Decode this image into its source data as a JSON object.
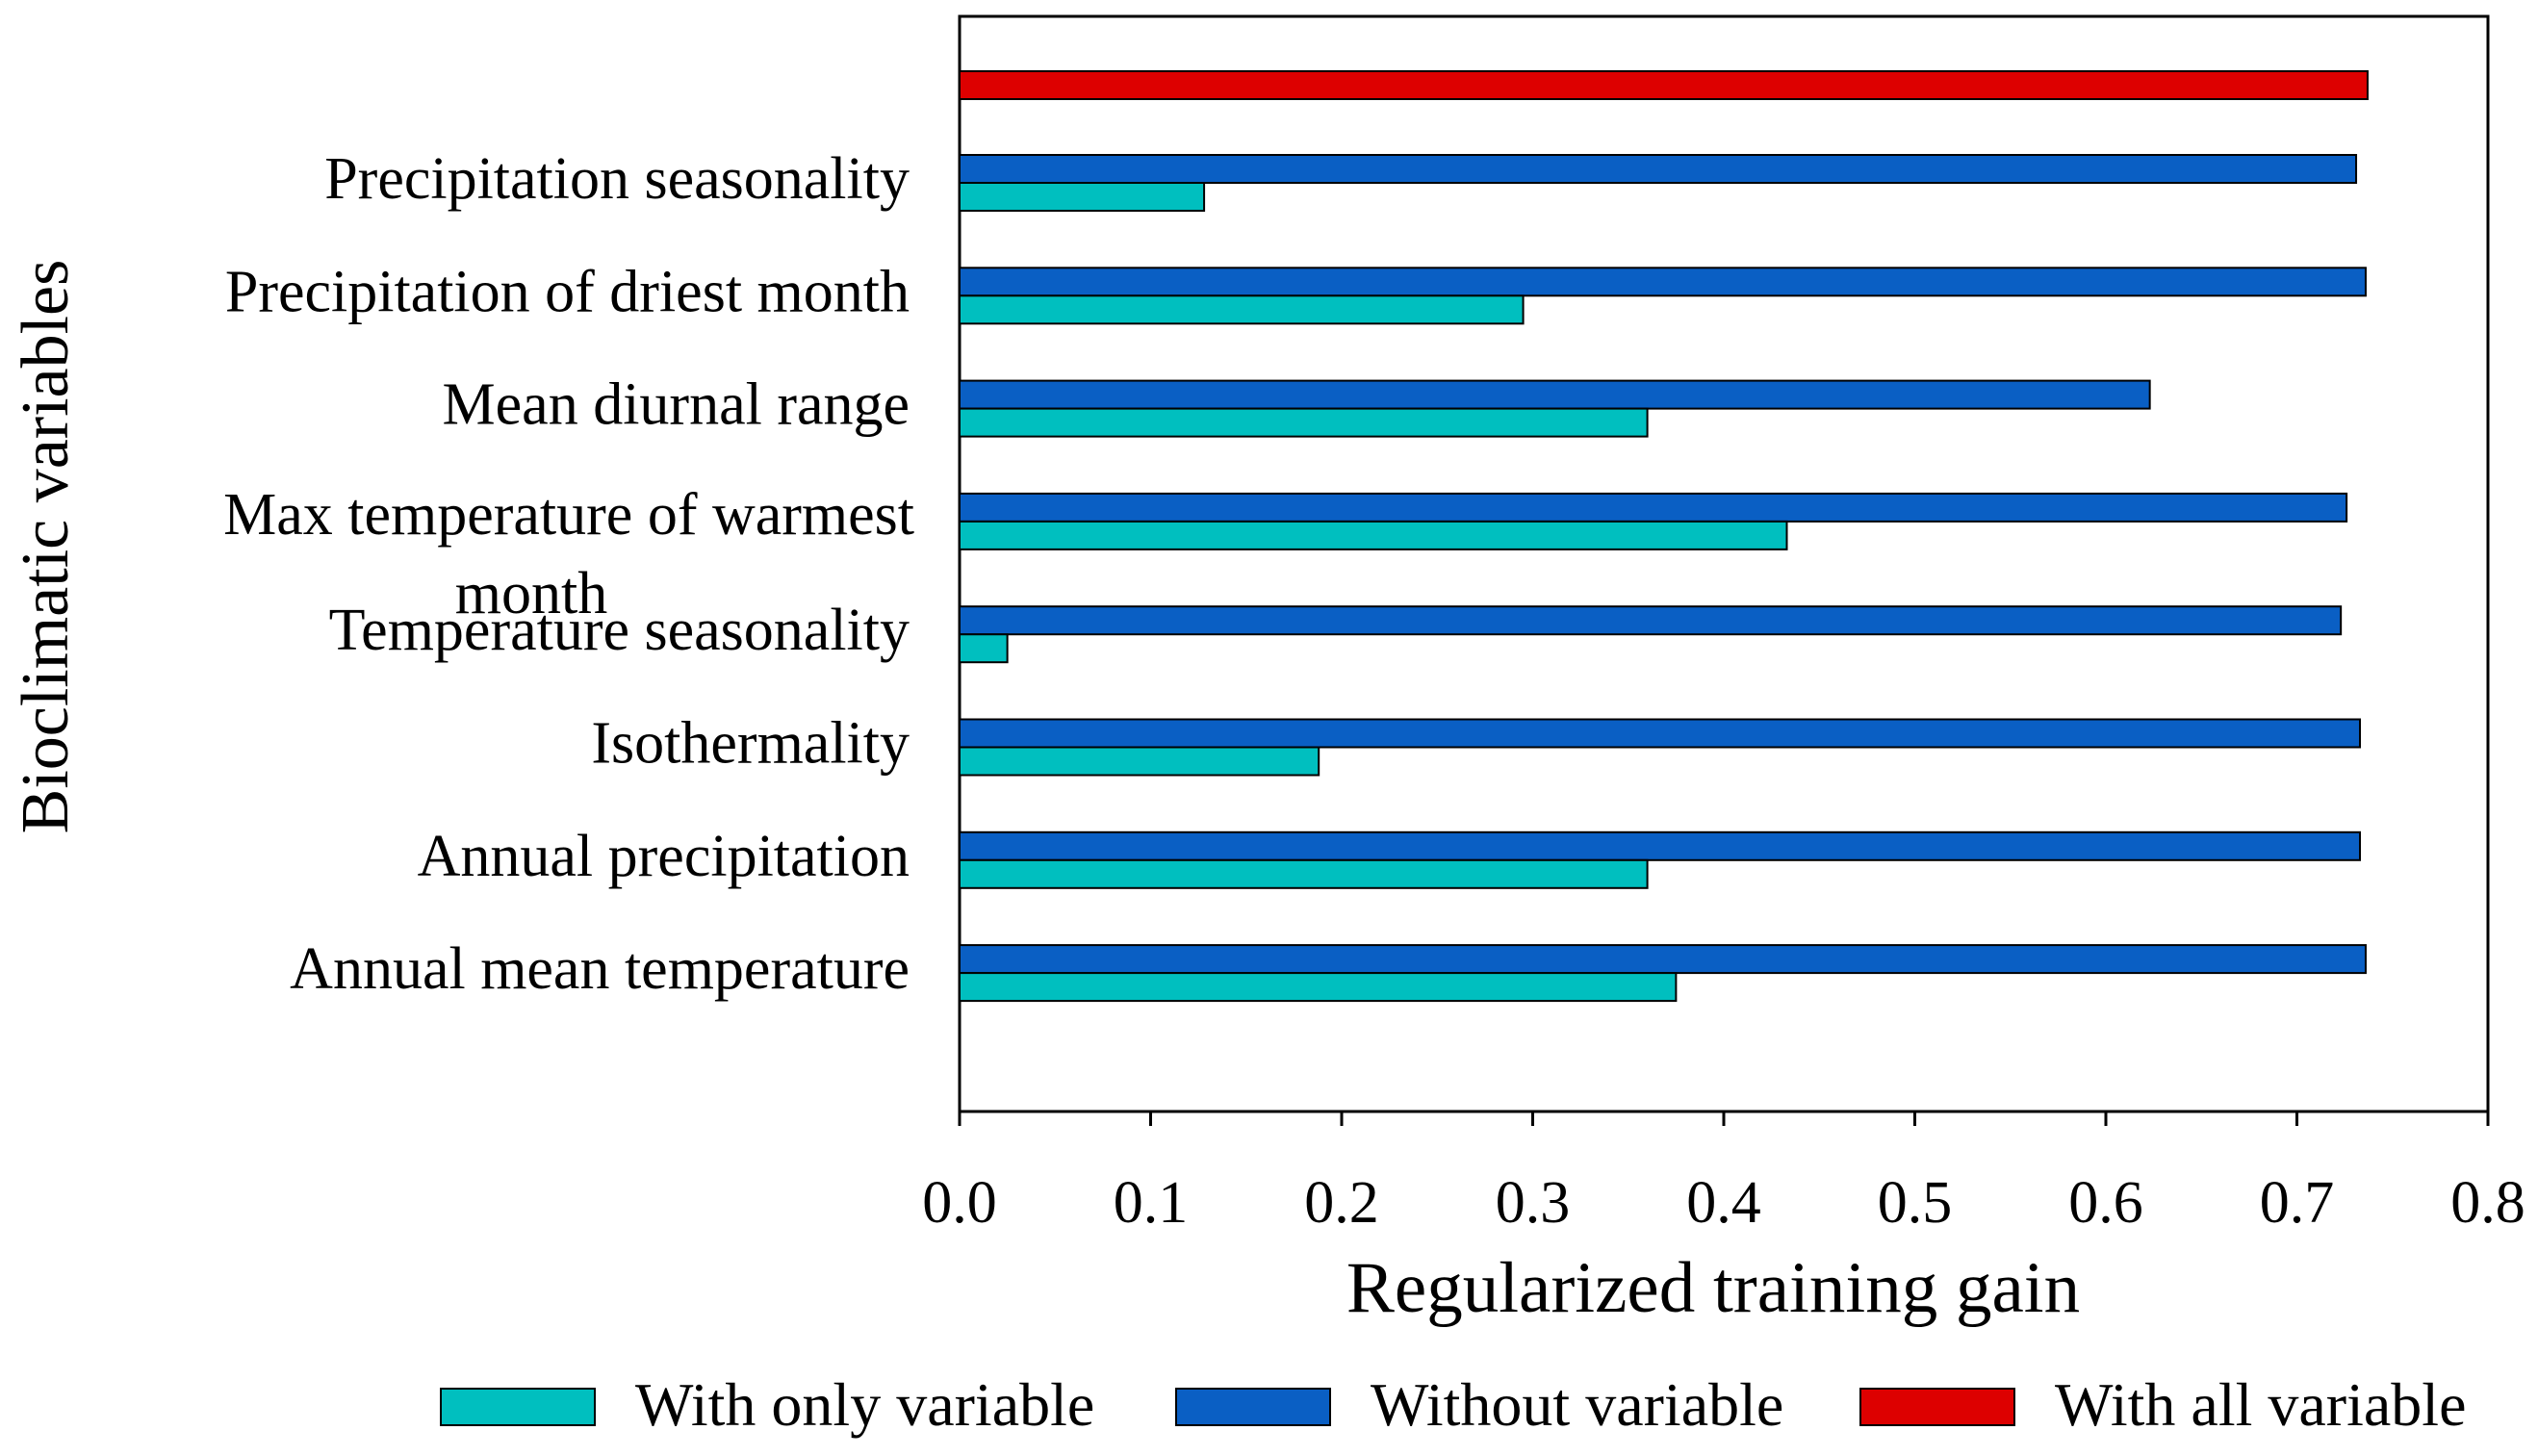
{
  "chart_data": {
    "type": "bar",
    "orientation": "horizontal",
    "xlabel": "Regularized training gain",
    "ylabel": "Bioclimatic variables",
    "xlim": [
      0,
      0.8
    ],
    "xticks": [
      "0.0",
      "0.1",
      "0.2",
      "0.3",
      "0.4",
      "0.5",
      "0.6",
      "0.7",
      "0.8"
    ],
    "grid": false,
    "legend_position": "bottom",
    "categories": [
      "Precipitation seasonality",
      "Precipitation of driest month",
      "Mean diurnal range",
      "Max temperature of warmest month",
      "Temperature seasonality",
      "Isothermality",
      "Annual precipitation",
      "Annual mean temperature"
    ],
    "category_label_lines": [
      [
        "Precipitation seasonality"
      ],
      [
        "Precipitation of driest month"
      ],
      [
        "Mean diurnal range"
      ],
      [
        "Max temperature of warmest",
        "month"
      ],
      [
        "Temperature seasonality"
      ],
      [
        "Isothermality"
      ],
      [
        "Annual precipitation"
      ],
      [
        "Annual mean temperature"
      ]
    ],
    "series": [
      {
        "name": "With only variable",
        "color": "#00BFBF",
        "values": [
          0.128,
          0.295,
          0.36,
          0.433,
          0.025,
          0.188,
          0.36,
          0.375
        ]
      },
      {
        "name": "Without variable",
        "color": "#0A5FC4",
        "values": [
          0.731,
          0.736,
          0.623,
          0.726,
          0.723,
          0.733,
          0.733,
          0.736
        ]
      }
    ],
    "all_variables": {
      "name": "With all variable",
      "color": "#DD0000",
      "value": 0.737
    }
  }
}
